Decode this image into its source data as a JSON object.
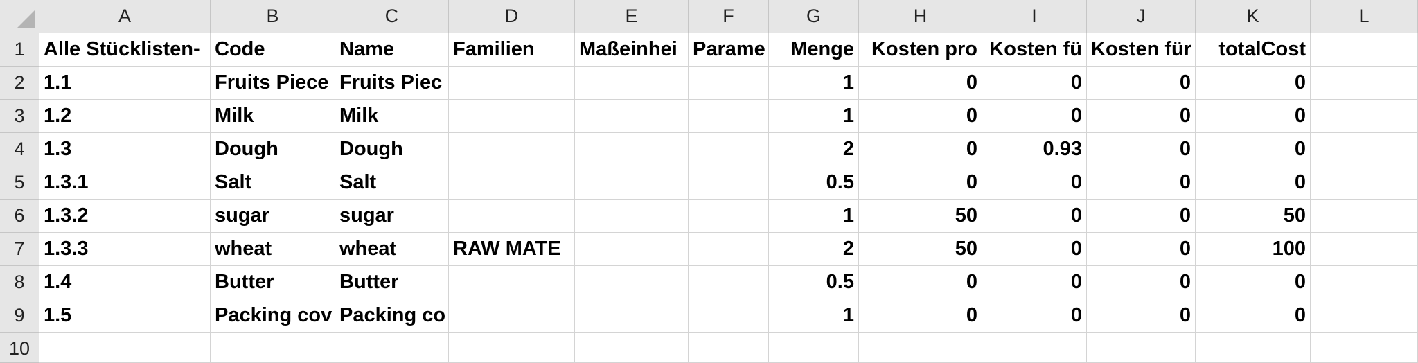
{
  "columns": [
    "A",
    "B",
    "C",
    "D",
    "E",
    "F",
    "G",
    "H",
    "I",
    "J",
    "K",
    "L"
  ],
  "rows": [
    {
      "num": "1",
      "cells": [
        "Alle Stücklisten-",
        "Code",
        "Name",
        "Familien",
        "Maßeinhei",
        "Parame",
        "Menge",
        "Kosten pro",
        "Kosten fü",
        "Kosten für",
        "totalCost",
        ""
      ]
    },
    {
      "num": "2",
      "cells": [
        "1.1",
        "Fruits Piece",
        "Fruits Piec",
        "",
        "",
        "",
        "1",
        "0",
        "0",
        "0",
        "0",
        ""
      ]
    },
    {
      "num": "3",
      "cells": [
        "1.2",
        "Milk",
        "Milk",
        "",
        "",
        "",
        "1",
        "0",
        "0",
        "0",
        "0",
        ""
      ]
    },
    {
      "num": "4",
      "cells": [
        "1.3",
        "Dough",
        "Dough",
        "",
        "",
        "",
        "2",
        "0",
        "0.93",
        "0",
        "0",
        ""
      ]
    },
    {
      "num": "5",
      "cells": [
        "1.3.1",
        "Salt",
        "Salt",
        "",
        "",
        "",
        "0.5",
        "0",
        "0",
        "0",
        "0",
        ""
      ]
    },
    {
      "num": "6",
      "cells": [
        "1.3.2",
        "sugar",
        "sugar",
        "",
        "",
        "",
        "1",
        "50",
        "0",
        "0",
        "50",
        ""
      ]
    },
    {
      "num": "7",
      "cells": [
        "1.3.3",
        "wheat",
        "wheat",
        "RAW MATE",
        "",
        "",
        "2",
        "50",
        "0",
        "0",
        "100",
        ""
      ]
    },
    {
      "num": "8",
      "cells": [
        "1.4",
        "Butter",
        "Butter",
        "",
        "",
        "",
        "0.5",
        "0",
        "0",
        "0",
        "0",
        ""
      ]
    },
    {
      "num": "9",
      "cells": [
        "1.5",
        "Packing cov",
        "Packing co",
        "",
        "",
        "",
        "1",
        "0",
        "0",
        "0",
        "0",
        ""
      ]
    },
    {
      "num": "10",
      "cells": [
        "",
        "",
        "",
        "",
        "",
        "",
        "",
        "",
        "",
        "",
        "",
        ""
      ]
    }
  ]
}
